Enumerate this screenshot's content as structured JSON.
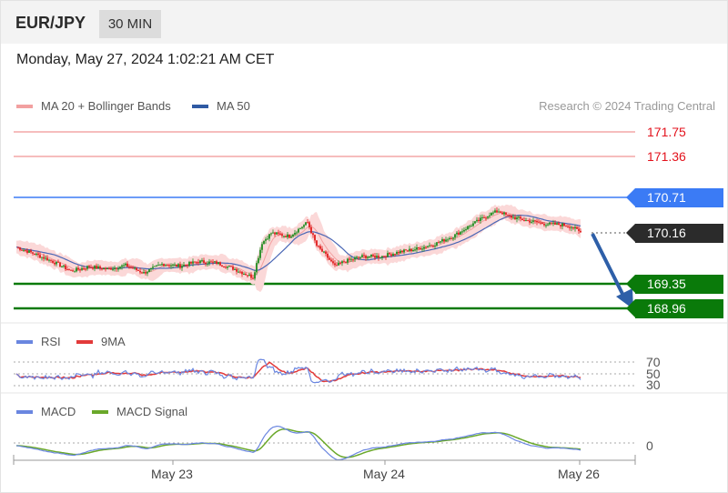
{
  "header": {
    "symbol": "EUR/JPY",
    "timeframe": "30 MIN"
  },
  "timestamp": "Monday, May 27, 2024 1:02:21 AM CET",
  "legend": {
    "ma20_bb": "MA 20 + Bollinger Bands",
    "ma50": "MA 50",
    "credit": "Research © 2024 Trading Central"
  },
  "levels": {
    "r2": "171.75",
    "r1": "171.36",
    "pivot": "170.71",
    "last": "170.16",
    "s1": "169.35",
    "s2": "168.96"
  },
  "rsi_panel": {
    "rsi_label": "RSI",
    "ma_label": "9MA",
    "ticks": [
      "70",
      "50",
      "30"
    ]
  },
  "macd_panel": {
    "macd_label": "MACD",
    "signal_label": "MACD Signal",
    "tick": "0"
  },
  "x_labels": [
    "May 23",
    "May 24",
    "May 26"
  ],
  "colors": {
    "bull": "#1f8c1f",
    "bear": "#e01b1b",
    "ma20": "#f2a0a0",
    "band": "#fbd8d8",
    "ma50": "#4a67b5",
    "pivot": "#3b7bf5",
    "support": "#0a7a0a",
    "last": "#2b2b2b",
    "arrow": "#2e5fa8",
    "rsi": "#6a86e0",
    "rsi_ma": "#e23a3a",
    "macd": "#6a86e0",
    "signal": "#6aa82a"
  },
  "chart_data": [
    {
      "type": "candlestick",
      "title": "EUR/JPY 30 MIN",
      "y_range": [
        168.8,
        172.0
      ],
      "levels": [
        171.75,
        171.36,
        170.71,
        170.16,
        169.35,
        168.96
      ],
      "x_labels": [
        "May 23",
        "May 24",
        "May 26"
      ],
      "close_path": [
        [
          0,
          169.93
        ],
        [
          10,
          169.82
        ],
        [
          20,
          169.7
        ],
        [
          30,
          169.55
        ],
        [
          40,
          169.62
        ],
        [
          50,
          169.58
        ],
        [
          60,
          169.64
        ],
        [
          70,
          169.52
        ],
        [
          80,
          169.66
        ],
        [
          90,
          169.63
        ],
        [
          100,
          169.7
        ],
        [
          110,
          169.68
        ],
        [
          120,
          169.58
        ],
        [
          130,
          169.45
        ],
        [
          135,
          170.0
        ],
        [
          140,
          170.15
        ],
        [
          150,
          170.1
        ],
        [
          160,
          170.32
        ],
        [
          165,
          169.95
        ],
        [
          170,
          169.8
        ],
        [
          175,
          169.62
        ],
        [
          180,
          169.7
        ],
        [
          190,
          169.78
        ],
        [
          200,
          169.78
        ],
        [
          210,
          169.85
        ],
        [
          220,
          169.9
        ],
        [
          230,
          169.98
        ],
        [
          240,
          170.1
        ],
        [
          250,
          170.28
        ],
        [
          260,
          170.45
        ],
        [
          265,
          170.5
        ],
        [
          270,
          170.42
        ],
        [
          280,
          170.35
        ],
        [
          290,
          170.3
        ],
        [
          300,
          170.28
        ],
        [
          305,
          170.25
        ],
        [
          310,
          170.16
        ]
      ],
      "series": [
        {
          "name": "MA 20 + Bollinger Bands"
        },
        {
          "name": "MA 50"
        }
      ]
    },
    {
      "type": "line",
      "series": [
        {
          "name": "RSI"
        },
        {
          "name": "9MA"
        }
      ],
      "y_ticks": [
        70,
        50,
        30
      ]
    },
    {
      "type": "line",
      "series": [
        {
          "name": "MACD"
        },
        {
          "name": "MACD Signal"
        }
      ],
      "y_ticks": [
        0
      ]
    }
  ]
}
